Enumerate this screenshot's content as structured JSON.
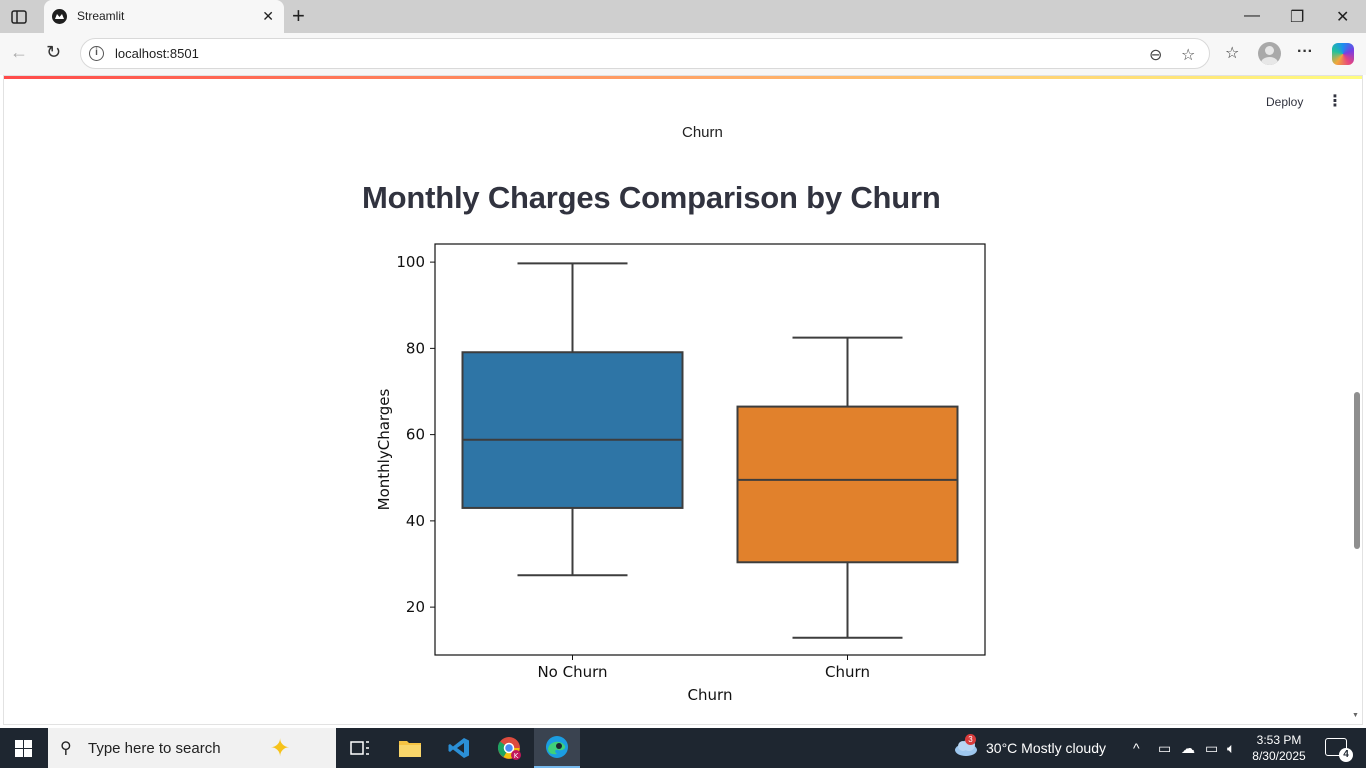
{
  "browser": {
    "tab_title": "Streamlit",
    "url": "localhost:8501"
  },
  "app": {
    "deploy_label": "Deploy",
    "previous_chart_xlabel": "Churn",
    "title": "Monthly Charges Comparison by Churn"
  },
  "chart_data": {
    "type": "box",
    "title": "",
    "xlabel": "Churn",
    "ylabel": "MonthlyCharges",
    "ylim": [
      8.9,
      104.2
    ],
    "yticks": [
      20,
      40,
      60,
      80,
      100
    ],
    "categories": [
      "No Churn",
      "Churn"
    ],
    "colors": [
      "#2e75a6",
      "#e1812c"
    ],
    "boxes": [
      {
        "category": "No Churn",
        "whisker_low": 27.4,
        "q1": 43.0,
        "median": 58.8,
        "q3": 79.1,
        "whisker_high": 99.7
      },
      {
        "category": "Churn",
        "whisker_low": 12.9,
        "q1": 30.4,
        "median": 49.5,
        "q3": 66.5,
        "whisker_high": 82.5
      }
    ],
    "grid": false
  },
  "taskbar": {
    "search_placeholder": "Type here to search",
    "weather_badge": "3",
    "weather": "30°C  Mostly cloudy",
    "time": "3:53 PM",
    "date": "8/30/2025",
    "notification_count": "4"
  }
}
